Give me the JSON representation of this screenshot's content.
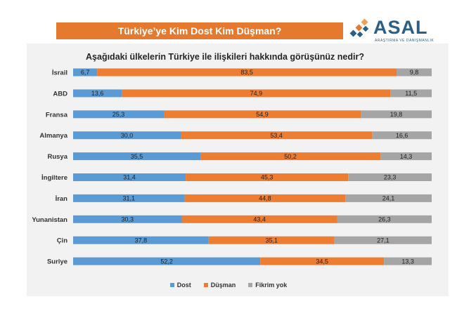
{
  "banner": {
    "title": "Türkiye’ye Kim Dost Kim Düşman?"
  },
  "logo": {
    "name": "ASAL",
    "tagline": "ARAŞTIRMA VE DANIŞMANLIK"
  },
  "colors": {
    "banner": "#e57a2e",
    "dost": "#5b9bd5",
    "dusman": "#ed7d31",
    "fikrim_yok": "#a5a5a5"
  },
  "chart_data": {
    "type": "bar",
    "orientation": "horizontal",
    "stacked": true,
    "percent_stacked": true,
    "title": "Aşağıdaki ülkelerin Türkiye ile ilişkileri hakkında görüşünüz nedir?",
    "categories": [
      "İsrail",
      "ABD",
      "Fransa",
      "Almanya",
      "Rusya",
      "İngiltere",
      "İran",
      "Yunanistan",
      "Çin",
      "Suriye"
    ],
    "series": [
      {
        "name": "Dost",
        "color": "#5b9bd5",
        "values": [
          6.7,
          13.6,
          25.3,
          30.0,
          35.5,
          31.4,
          31.1,
          30.3,
          37.8,
          52.2
        ],
        "labels": [
          "6,7",
          "13,6",
          "25,3",
          "30,0",
          "35,5",
          "31,4",
          "31,1",
          "30,3",
          "37,8",
          "52,2"
        ]
      },
      {
        "name": "Düşman",
        "color": "#ed7d31",
        "values": [
          83.5,
          74.9,
          54.9,
          53.4,
          50.2,
          45.3,
          44.8,
          43.4,
          35.1,
          34.5
        ],
        "labels": [
          "83,5",
          "74,9",
          "54,9",
          "53,4",
          "50,2",
          "45,3",
          "44,8",
          "43,4",
          "35,1",
          "34,5"
        ]
      },
      {
        "name": "Fikrim yok",
        "color": "#a5a5a5",
        "values": [
          9.8,
          11.5,
          19.8,
          16.6,
          14.3,
          23.3,
          24.1,
          26.3,
          27.1,
          13.3
        ],
        "labels": [
          "9,8",
          "11,5",
          "19,8",
          "16,6",
          "14,3",
          "23,3",
          "24,1",
          "26,3",
          "27,1",
          "13,3"
        ]
      }
    ],
    "legend_position": "bottom",
    "grid": false
  }
}
